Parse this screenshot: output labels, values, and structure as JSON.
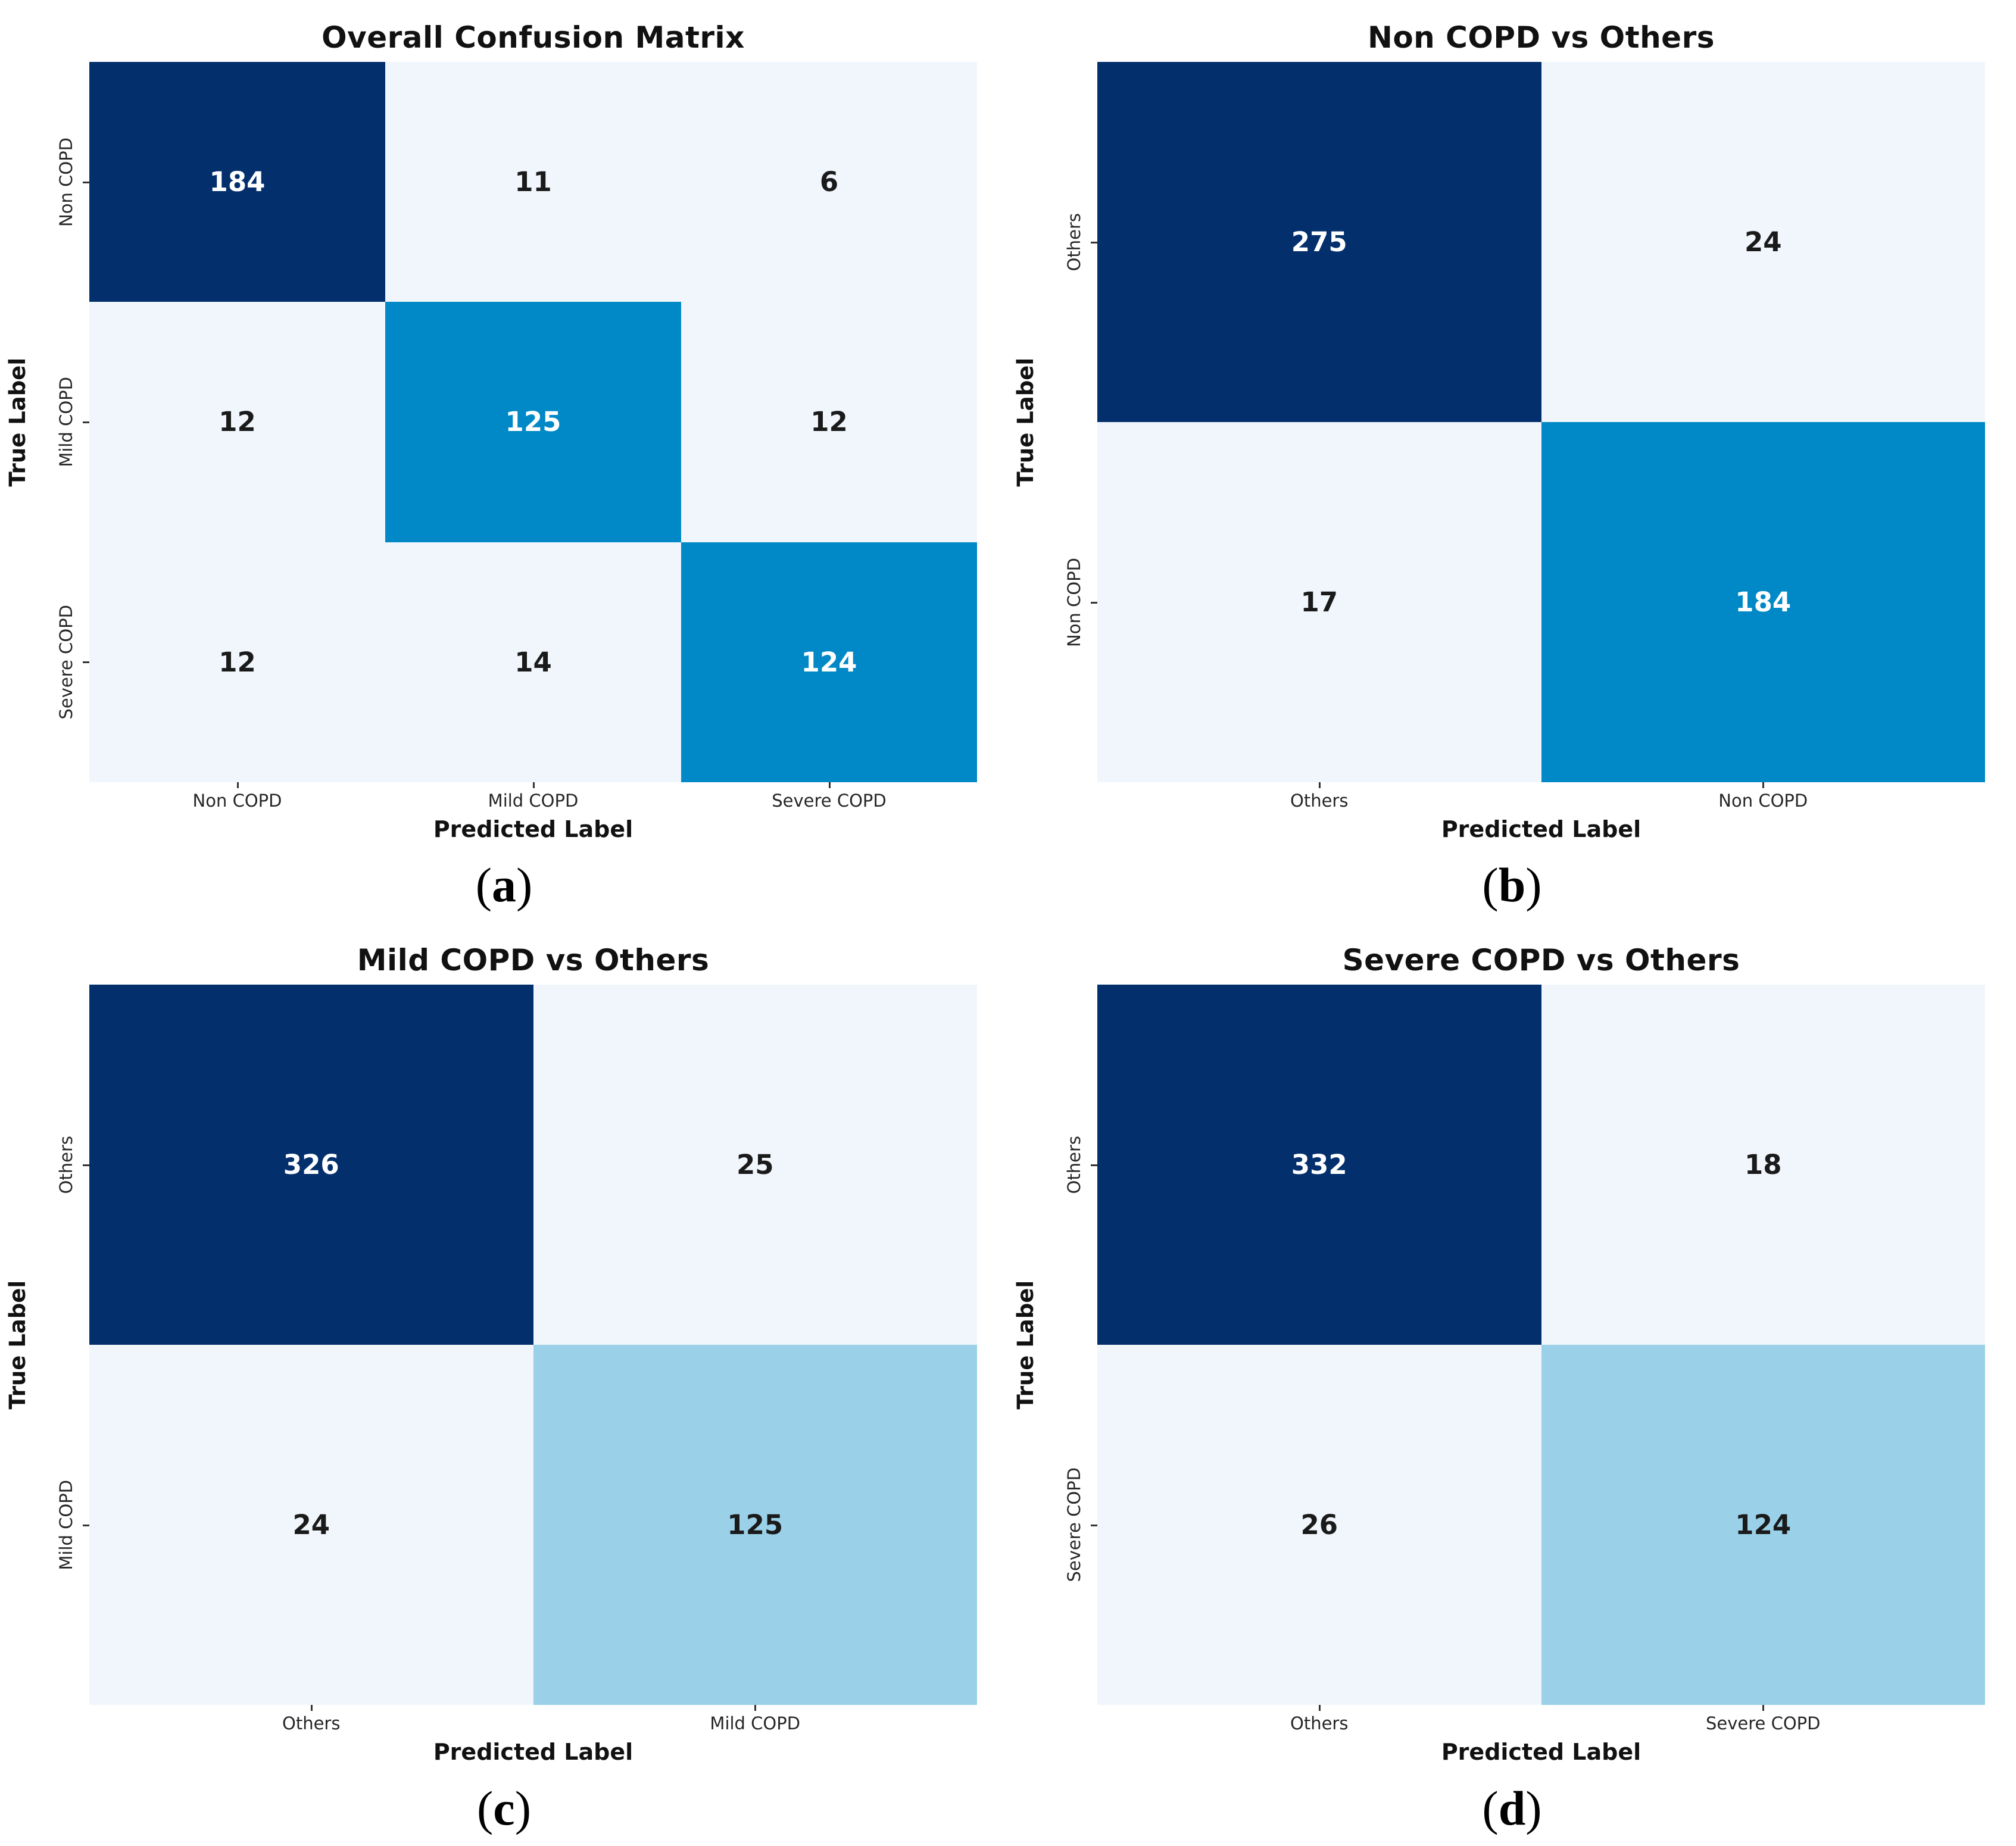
{
  "figure": {
    "background": "#ffffff",
    "description": "Four confusion-matrix heatmaps arranged 2x2"
  },
  "colors": {
    "navy": "#032f6d",
    "medium_blue": "#0089c6",
    "light_blue": "#9ad1e8",
    "pale_blue": "#f0f6fc",
    "text_dark": "#1a1a1a",
    "text_white": "#ffffff",
    "tick": "#333333"
  },
  "chart_data": [
    {
      "id": "a",
      "type": "heatmap",
      "title": "Overall Confusion Matrix",
      "xlabel": "Predicted Label",
      "ylabel": "True Label",
      "caption": {
        "open": "(",
        "letter": "a",
        "close": ")"
      },
      "row_labels": [
        "Non COPD",
        "Mild COPD",
        "Severe COPD"
      ],
      "col_labels": [
        "Non COPD",
        "Mild COPD",
        "Severe COPD"
      ],
      "matrix": [
        [
          184,
          11,
          6
        ],
        [
          12,
          125,
          12
        ],
        [
          12,
          14,
          124
        ]
      ],
      "cell_bg": [
        [
          "#032f6d",
          "#f0f6fc",
          "#f0f6fc"
        ],
        [
          "#f0f6fc",
          "#0089c6",
          "#f0f6fc"
        ],
        [
          "#f0f6fc",
          "#f0f6fc",
          "#0089c6"
        ]
      ],
      "cell_fg": [
        [
          "#ffffff",
          "#1a1a1a",
          "#1a1a1a"
        ],
        [
          "#1a1a1a",
          "#ffffff",
          "#1a1a1a"
        ],
        [
          "#1a1a1a",
          "#1a1a1a",
          "#ffffff"
        ]
      ]
    },
    {
      "id": "b",
      "type": "heatmap",
      "title": "Non COPD vs Others",
      "xlabel": "Predicted Label",
      "ylabel": "True Label",
      "caption": {
        "open": "(",
        "letter": "b",
        "close": ")"
      },
      "row_labels": [
        "Others",
        "Non COPD"
      ],
      "col_labels": [
        "Others",
        "Non COPD"
      ],
      "matrix": [
        [
          275,
          24
        ],
        [
          17,
          184
        ]
      ],
      "cell_bg": [
        [
          "#032f6d",
          "#f0f6fc"
        ],
        [
          "#f0f6fc",
          "#0089c6"
        ]
      ],
      "cell_fg": [
        [
          "#ffffff",
          "#1a1a1a"
        ],
        [
          "#1a1a1a",
          "#ffffff"
        ]
      ]
    },
    {
      "id": "c",
      "type": "heatmap",
      "title": "Mild COPD vs Others",
      "xlabel": "Predicted Label",
      "ylabel": "True Label",
      "caption": {
        "open": "(",
        "letter": "c",
        "close": ")"
      },
      "row_labels": [
        "Others",
        "Mild COPD"
      ],
      "col_labels": [
        "Others",
        "Mild COPD"
      ],
      "matrix": [
        [
          326,
          25
        ],
        [
          24,
          125
        ]
      ],
      "cell_bg": [
        [
          "#032f6d",
          "#f0f6fc"
        ],
        [
          "#f0f6fc",
          "#9ad1e8"
        ]
      ],
      "cell_fg": [
        [
          "#ffffff",
          "#1a1a1a"
        ],
        [
          "#1a1a1a",
          "#1a1a1a"
        ]
      ]
    },
    {
      "id": "d",
      "type": "heatmap",
      "title": "Severe COPD vs Others",
      "xlabel": "Predicted Label",
      "ylabel": "True Label",
      "caption": {
        "open": "(",
        "letter": "d",
        "close": ")"
      },
      "row_labels": [
        "Others",
        "Severe COPD"
      ],
      "col_labels": [
        "Others",
        "Severe COPD"
      ],
      "matrix": [
        [
          332,
          18
        ],
        [
          26,
          124
        ]
      ],
      "cell_bg": [
        [
          "#032f6d",
          "#f0f6fc"
        ],
        [
          "#f0f6fc",
          "#9ad1e8"
        ]
      ],
      "cell_fg": [
        [
          "#ffffff",
          "#1a1a1a"
        ],
        [
          "#1a1a1a",
          "#1a1a1a"
        ]
      ]
    }
  ]
}
